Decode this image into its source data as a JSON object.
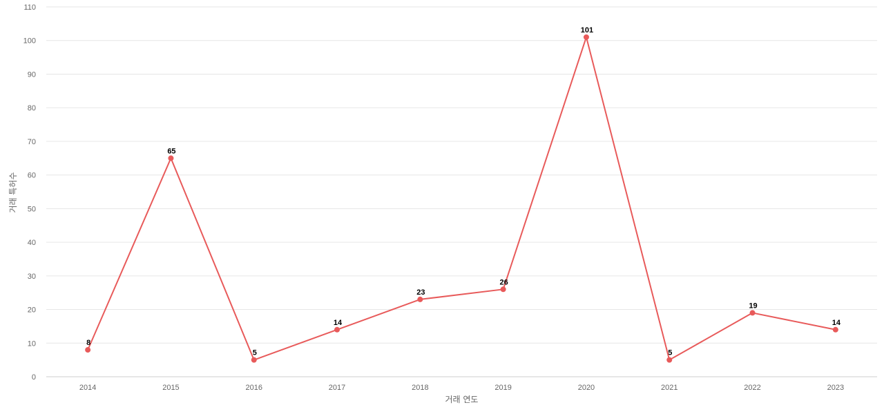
{
  "chart_data": {
    "type": "line",
    "title": "",
    "xlabel": "거래 연도",
    "ylabel": "거래 특허수",
    "x": [
      "2014",
      "2015",
      "2016",
      "2017",
      "2018",
      "2019",
      "2020",
      "2021",
      "2022",
      "2023"
    ],
    "series": [
      {
        "values": [
          8,
          65,
          5,
          14,
          23,
          26,
          101,
          5,
          19,
          14
        ],
        "color": "#e85a5a"
      }
    ],
    "ylim": [
      0,
      110
    ],
    "yticks": [
      0,
      10,
      20,
      30,
      40,
      50,
      60,
      70,
      80,
      90,
      100,
      110
    ],
    "grid": true,
    "data_labels": true
  }
}
